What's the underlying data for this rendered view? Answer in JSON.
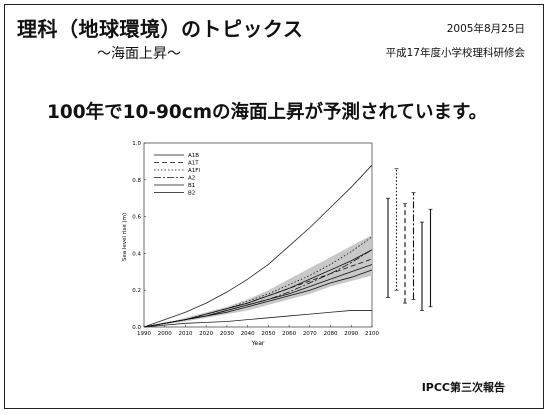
{
  "header": {
    "title": "理科（地球環境）のトピックス",
    "subtitle": "～海面上昇～",
    "date": "2005年8月25日",
    "organization": "平成17年度小学校理科研修会"
  },
  "headline": "100年で10-90cmの海面上昇が予測されています。",
  "footer": {
    "source": "IPCC第三次報告"
  },
  "chart_data": {
    "type": "line",
    "xlabel": "Year",
    "ylabel": "Sea level rise (m)",
    "xlim": [
      1990,
      2100
    ],
    "ylim": [
      0,
      1.0
    ],
    "x_ticks": [
      "1990",
      "2000",
      "2010",
      "2020",
      "2030",
      "2040",
      "2050",
      "2060",
      "2070",
      "2080",
      "2090",
      "2100"
    ],
    "y_ticks": [
      "0.0",
      "0.2",
      "0.4",
      "0.6",
      "0.8",
      "1.0"
    ],
    "legend_position": "top-left",
    "x": [
      1990,
      2000,
      2010,
      2020,
      2030,
      2040,
      2050,
      2060,
      2070,
      2080,
      2090,
      2100
    ],
    "series": [
      {
        "name": "A1B",
        "dash": "none",
        "values": [
          0,
          0.02,
          0.04,
          0.07,
          0.1,
          0.13,
          0.17,
          0.21,
          0.26,
          0.31,
          0.36,
          0.42
        ]
      },
      {
        "name": "A1T",
        "dash": "5,3",
        "values": [
          0,
          0.02,
          0.04,
          0.07,
          0.1,
          0.13,
          0.17,
          0.21,
          0.25,
          0.29,
          0.33,
          0.37
        ]
      },
      {
        "name": "A1FI",
        "dash": "1.5,2",
        "values": [
          0,
          0.02,
          0.04,
          0.07,
          0.1,
          0.14,
          0.18,
          0.23,
          0.28,
          0.34,
          0.41,
          0.49
        ]
      },
      {
        "name": "A2",
        "dash": "7,2,2,2",
        "values": [
          0,
          0.02,
          0.04,
          0.06,
          0.09,
          0.12,
          0.15,
          0.19,
          0.24,
          0.29,
          0.35,
          0.42
        ]
      },
      {
        "name": "B1",
        "dash": "none",
        "values": [
          0,
          0.02,
          0.04,
          0.06,
          0.08,
          0.11,
          0.14,
          0.17,
          0.2,
          0.24,
          0.27,
          0.31
        ]
      },
      {
        "name": "B2",
        "dash": "none",
        "values": [
          0,
          0.02,
          0.04,
          0.06,
          0.09,
          0.12,
          0.15,
          0.18,
          0.22,
          0.26,
          0.3,
          0.34
        ]
      }
    ],
    "upper_envelope": [
      0,
      0.04,
      0.08,
      0.13,
      0.19,
      0.26,
      0.34,
      0.44,
      0.54,
      0.65,
      0.76,
      0.88
    ],
    "lower_envelope": [
      0,
      0.01,
      0.02,
      0.025,
      0.03,
      0.04,
      0.05,
      0.06,
      0.07,
      0.08,
      0.09,
      0.09
    ],
    "shaded_band": {
      "upper": [
        0,
        0.02,
        0.05,
        0.08,
        0.11,
        0.15,
        0.2,
        0.26,
        0.32,
        0.38,
        0.44,
        0.5
      ],
      "lower": [
        0,
        0.015,
        0.03,
        0.05,
        0.07,
        0.09,
        0.12,
        0.15,
        0.18,
        0.22,
        0.25,
        0.28
      ]
    },
    "range_bars": [
      {
        "dash": "none",
        "low": 0.16,
        "high": 0.7
      },
      {
        "dash": "1.5,2",
        "low": 0.2,
        "high": 0.86
      },
      {
        "dash": "5,3",
        "low": 0.13,
        "high": 0.67
      },
      {
        "dash": "7,2,2,2",
        "low": 0.15,
        "high": 0.73
      },
      {
        "dash": "none",
        "low": 0.09,
        "high": 0.57
      },
      {
        "dash": "none",
        "low": 0.11,
        "high": 0.64
      }
    ]
  }
}
